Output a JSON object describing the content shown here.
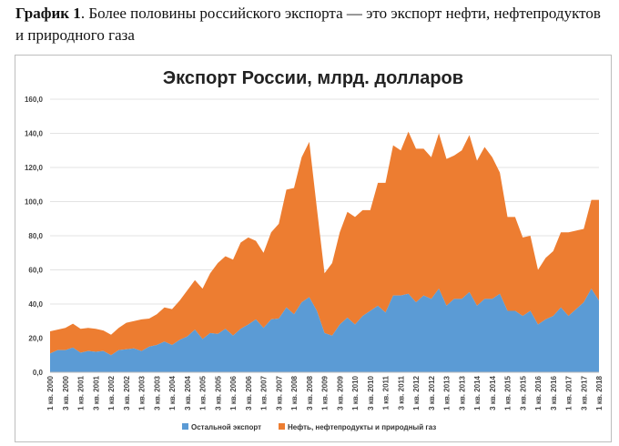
{
  "caption": {
    "label": "График 1",
    "text": ". Более половины российского экспорта — это экспорт нефти, нефтепродуктов и природного газа"
  },
  "chart_data": {
    "type": "area",
    "stacked": true,
    "title": "Экспорт России, млрд. долларов",
    "xlabel": "",
    "ylabel": "",
    "ylim": [
      0,
      160
    ],
    "yticks": [
      "0,0",
      "20,0",
      "40,0",
      "60,0",
      "80,0",
      "100,0",
      "120,0",
      "140,0",
      "160,0"
    ],
    "grid": true,
    "legend_position": "bottom",
    "x_tick_labels": [
      "1 кв. 2000",
      "3 кв. 2000",
      "1 кв. 2001",
      "3 кв. 2001",
      "1 кв. 2002",
      "3 кв. 2002",
      "1 кв. 2003",
      "3 кв. 2003",
      "1 кв. 2004",
      "3 кв. 2004",
      "1 кв. 2005",
      "3 кв. 2005",
      "1 кв. 2006",
      "3 кв. 2006",
      "1 кв. 2007",
      "3 кв. 2007",
      "1 кв. 2008",
      "3 кв. 2008",
      "1 кв. 2009",
      "3 кв. 2009",
      "1 кв. 2010",
      "3 кв. 2010",
      "1 кв. 2011",
      "3 кв. 2011",
      "1 кв. 2012",
      "3 кв. 2012",
      "1 кв. 2013",
      "3 кв. 2013",
      "1 кв. 2014",
      "3 кв. 2014",
      "1 кв. 2015",
      "3 кв. 2015",
      "1 кв. 2016",
      "3 кв. 2016",
      "1 кв. 2017",
      "3 кв. 2017",
      "1 кв. 2018"
    ],
    "quarters_count": 73,
    "series": [
      {
        "name": "Остальной экспорт",
        "color": "#5b9bd5",
        "values": [
          11,
          13,
          13,
          14.5,
          11.5,
          12.5,
          12,
          12.5,
          10,
          13,
          13.5,
          14,
          12.5,
          15,
          16,
          18,
          16,
          19,
          21,
          25,
          19.5,
          23,
          22.5,
          25.5,
          21.5,
          25.5,
          28,
          31,
          26,
          31,
          31.5,
          38,
          34,
          41,
          44,
          36,
          23,
          21.5,
          28,
          32,
          28,
          33,
          36,
          39,
          35,
          45,
          45,
          46,
          41,
          45,
          43,
          49,
          39,
          43,
          43,
          47,
          39,
          43,
          43,
          46,
          36,
          36,
          33,
          36,
          28,
          31,
          33,
          38,
          33,
          37,
          41,
          49,
          42
        ]
      },
      {
        "name": "Нефть, нефтепродукты и природный газ",
        "color": "#ed7d31",
        "totals": [
          24,
          25,
          26,
          28.5,
          25.5,
          26,
          25.5,
          24.5,
          22,
          26,
          29,
          30,
          31,
          31.5,
          34,
          38,
          37,
          42,
          48,
          54,
          49,
          58,
          64,
          68,
          66,
          76,
          79,
          77,
          70,
          82,
          87,
          107,
          108,
          126,
          135,
          96,
          58,
          64,
          82,
          94,
          91,
          95,
          95,
          111,
          111,
          133,
          130,
          141,
          131,
          131,
          126,
          140,
          125,
          127,
          130,
          139,
          124,
          132,
          126,
          117,
          91,
          91,
          79,
          80,
          60,
          67,
          71,
          82,
          82,
          83,
          84,
          101,
          101
        ]
      }
    ]
  }
}
